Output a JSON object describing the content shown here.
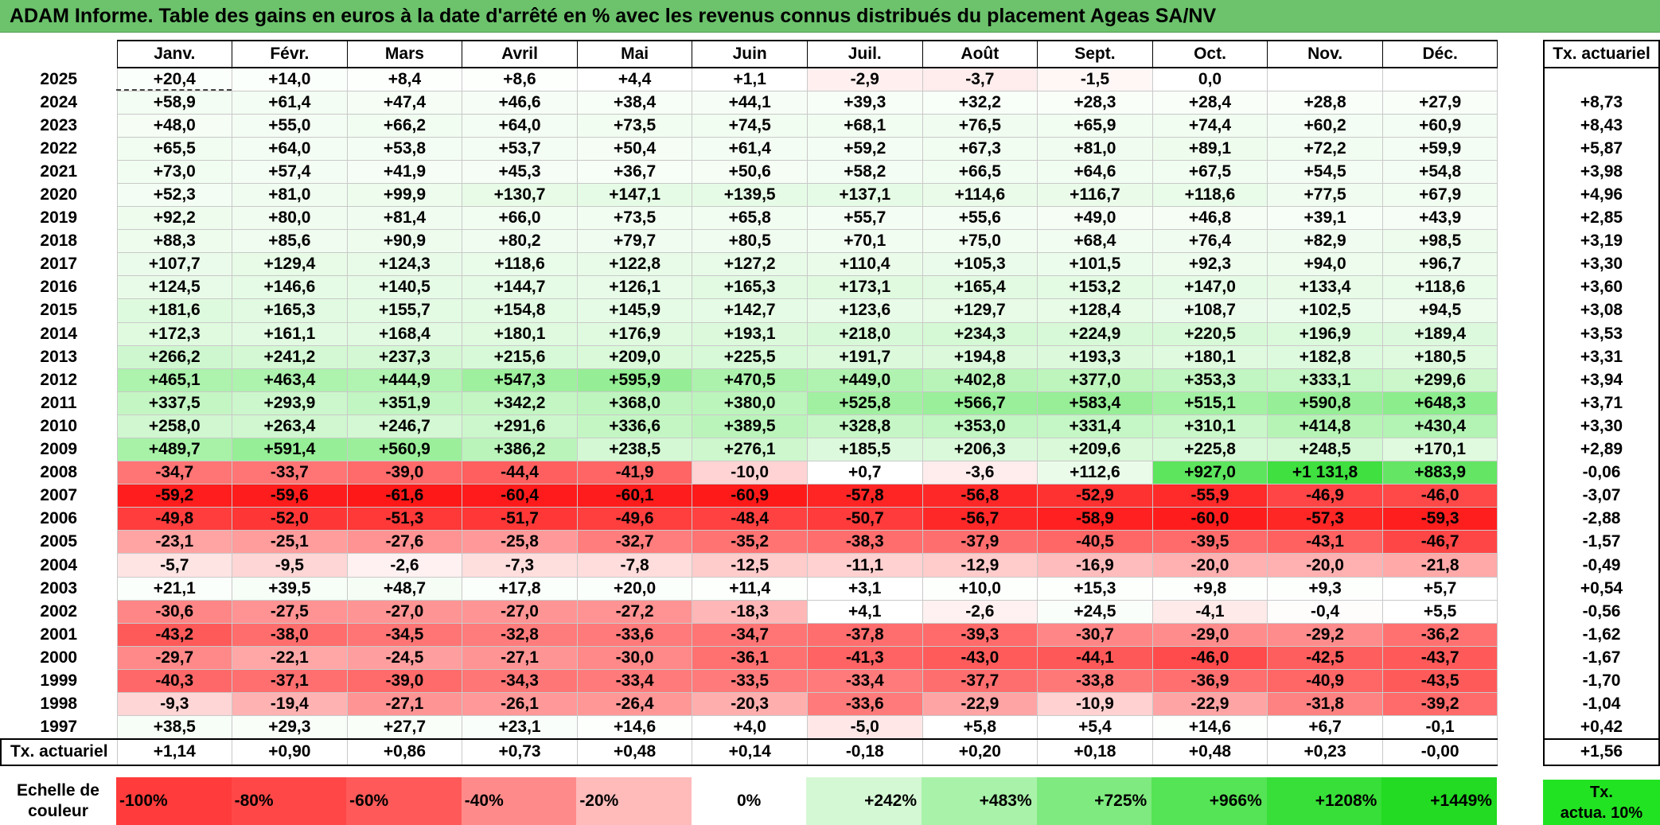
{
  "title": "ADAM Informe. Table des gains en euros à la date d'arrêté en % avec les revenus connus distribués du placement Ageas SA/NV",
  "months": [
    "Janv.",
    "Févr.",
    "Mars",
    "Avril",
    "Mai",
    "Juin",
    "Juil.",
    "Août",
    "Sept.",
    "Oct.",
    "Nov.",
    "Déc."
  ],
  "tx_header": "Tx. actuariel",
  "rows": [
    {
      "year": "2025",
      "values": [
        "+20,4",
        "+14,0",
        "+8,4",
        "+8,6",
        "+4,4",
        "+1,1",
        "-2,9",
        "-3,7",
        "-1,5",
        "0,0",
        "",
        ""
      ],
      "colors": [
        "#fbfffb",
        "#fbfffb",
        "#fdfffd",
        "#fdfffd",
        "#fefffe",
        "#fefffe",
        "#ffefef",
        "#ffecec",
        "#fff6f6",
        "#ffffff",
        "#ffffff",
        "#ffffff"
      ],
      "tx": ""
    },
    {
      "year": "2024",
      "values": [
        "+58,9",
        "+61,4",
        "+47,4",
        "+46,6",
        "+38,4",
        "+44,1",
        "+39,3",
        "+32,2",
        "+28,3",
        "+28,4",
        "+28,8",
        "+27,9"
      ],
      "colors": [
        "#f3fdf3",
        "#f3fdf3",
        "#f5fdf5",
        "#f6fdf6",
        "#f7fef7",
        "#f6fdf6",
        "#f7fef7",
        "#f8fef8",
        "#f9fef9",
        "#f9fef9",
        "#f9fef9",
        "#f9fef9"
      ],
      "tx": "+8,73"
    },
    {
      "year": "2023",
      "values": [
        "+48,0",
        "+55,0",
        "+66,2",
        "+64,0",
        "+73,5",
        "+74,5",
        "+68,1",
        "+76,5",
        "+65,9",
        "+74,4",
        "+60,2",
        "+60,9"
      ],
      "colors": [
        "#f5fdf5",
        "#f4fdf4",
        "#f2fdf2",
        "#f3fdf3",
        "#f1fdf1",
        "#f1fdf1",
        "#f2fdf2",
        "#f1fcf1",
        "#f2fdf2",
        "#f1fdf1",
        "#f3fdf3",
        "#f3fdf3"
      ],
      "tx": "+8,43"
    },
    {
      "year": "2022",
      "values": [
        "+65,5",
        "+64,0",
        "+53,8",
        "+53,7",
        "+50,4",
        "+61,4",
        "+59,2",
        "+67,3",
        "+81,0",
        "+89,1",
        "+72,2",
        "+59,9"
      ],
      "colors": [
        "#f2fdf2",
        "#f3fdf3",
        "#f4fdf4",
        "#f4fdf4",
        "#f5fdf5",
        "#f3fdf3",
        "#f3fdf3",
        "#f2fdf2",
        "#f0fcf0",
        "#eefcee",
        "#f1fdf1",
        "#f3fdf3"
      ],
      "tx": "+5,87"
    },
    {
      "year": "2021",
      "values": [
        "+73,0",
        "+57,4",
        "+41,9",
        "+45,3",
        "+36,7",
        "+50,6",
        "+58,2",
        "+66,5",
        "+64,6",
        "+67,5",
        "+54,5",
        "+54,8"
      ],
      "colors": [
        "#f1fdf1",
        "#f4fdf4",
        "#f6fdf6",
        "#f6fdf6",
        "#f7fef7",
        "#f5fdf5",
        "#f4fdf4",
        "#f2fdf2",
        "#f2fdf2",
        "#f2fdf2",
        "#f4fdf4",
        "#f4fdf4"
      ],
      "tx": "+3,98"
    },
    {
      "year": "2020",
      "values": [
        "+52,3",
        "+81,0",
        "+99,9",
        "+130,7",
        "+147,1",
        "+139,5",
        "+137,1",
        "+114,6",
        "+116,7",
        "+118,6",
        "+77,5",
        "+67,9"
      ],
      "colors": [
        "#f4fdf4",
        "#f0fcf0",
        "#edfcec",
        "#e7fbe7",
        "#e5fbe5",
        "#e6fbe6",
        "#e6fbe6",
        "#eafbea",
        "#eafbea",
        "#e9fbe9",
        "#f0fcf0",
        "#f2fdf2"
      ],
      "tx": "+4,96"
    },
    {
      "year": "2019",
      "values": [
        "+92,2",
        "+80,0",
        "+81,4",
        "+66,0",
        "+73,5",
        "+65,8",
        "+55,7",
        "+55,6",
        "+49,0",
        "+46,8",
        "+39,1",
        "+43,9"
      ],
      "colors": [
        "#eefcee",
        "#f0fcf0",
        "#f0fcf0",
        "#f2fdf2",
        "#f1fdf1",
        "#f2fdf2",
        "#f4fdf4",
        "#f4fdf4",
        "#f5fdf5",
        "#f5fdf5",
        "#f7fef7",
        "#f6fdf6"
      ],
      "tx": "+2,85"
    },
    {
      "year": "2018",
      "values": [
        "+88,3",
        "+85,6",
        "+90,9",
        "+80,2",
        "+79,7",
        "+80,5",
        "+70,1",
        "+75,0",
        "+68,4",
        "+76,4",
        "+82,9",
        "+98,5"
      ],
      "colors": [
        "#eefcee",
        "#effcef",
        "#eefcee",
        "#f0fcf0",
        "#f0fcf0",
        "#f0fcf0",
        "#f2fdf2",
        "#f1fdf1",
        "#f2fdf2",
        "#f1fcf1",
        "#effcef",
        "#edfcec"
      ],
      "tx": "+3,19"
    },
    {
      "year": "2017",
      "values": [
        "+107,7",
        "+129,4",
        "+124,3",
        "+118,6",
        "+122,8",
        "+127,2",
        "+110,4",
        "+105,3",
        "+101,5",
        "+92,3",
        "+94,0",
        "+96,7"
      ],
      "colors": [
        "#ebfbeb",
        "#e7fbe7",
        "#e8fbe8",
        "#e9fbe9",
        "#e8fbe8",
        "#e8fbe8",
        "#ebfbea",
        "#ebfbeb",
        "#ecfcec",
        "#eefcee",
        "#edfced",
        "#edfcec"
      ],
      "tx": "+3,30"
    },
    {
      "year": "2016",
      "values": [
        "+124,5",
        "+146,6",
        "+140,5",
        "+144,7",
        "+126,1",
        "+165,3",
        "+173,1",
        "+165,4",
        "+153,2",
        "+147,0",
        "+133,4",
        "+118,6"
      ],
      "colors": [
        "#e8fbe8",
        "#e5fbe5",
        "#e6fbe6",
        "#e5fbe5",
        "#e8fbe8",
        "#e1fae1",
        "#e0fae0",
        "#e1fae1",
        "#e3fae3",
        "#e5fbe5",
        "#e7fbe7",
        "#e9fbe9"
      ],
      "tx": "+3,60"
    },
    {
      "year": "2015",
      "values": [
        "+181,6",
        "+165,3",
        "+155,7",
        "+154,8",
        "+145,9",
        "+142,7",
        "+123,6",
        "+129,7",
        "+128,4",
        "+108,7",
        "+102,5",
        "+94,5"
      ],
      "colors": [
        "#defade",
        "#e1fae1",
        "#e3fae3",
        "#e3fae3",
        "#e5fbe5",
        "#e5fbe5",
        "#e8fbe8",
        "#e7fbe7",
        "#e7fbe7",
        "#ebfbeb",
        "#ecfcec",
        "#edfced"
      ],
      "tx": "+3,08"
    },
    {
      "year": "2014",
      "values": [
        "+172,3",
        "+161,1",
        "+168,4",
        "+180,1",
        "+176,9",
        "+193,1",
        "+218,0",
        "+234,3",
        "+224,9",
        "+220,5",
        "+196,9",
        "+189,4"
      ],
      "colors": [
        "#e0fae0",
        "#e2fae2",
        "#e1fae1",
        "#dffadf",
        "#dffadf",
        "#dcf9dc",
        "#d8f9d8",
        "#d5f8d5",
        "#d7f9d7",
        "#d7f9d7",
        "#dbf9db",
        "#ddf9dd"
      ],
      "tx": "+3,53"
    },
    {
      "year": "2013",
      "values": [
        "+266,2",
        "+241,2",
        "+237,3",
        "+215,6",
        "+209,0",
        "+225,5",
        "+191,7",
        "+194,8",
        "+193,3",
        "+180,1",
        "+182,8",
        "+180,5"
      ],
      "colors": [
        "#cff7cf",
        "#d4f8d4",
        "#d4f8d4",
        "#d8f9d8",
        "#d9f9d9",
        "#d7f9d7",
        "#dcf9dc",
        "#dcf9dc",
        "#dcf9dc",
        "#dffadf",
        "#defade",
        "#dffadf"
      ],
      "tx": "+3,31"
    },
    {
      "year": "2012",
      "values": [
        "+465,1",
        "+463,4",
        "+444,9",
        "+547,3",
        "+595,9",
        "+470,5",
        "+449,0",
        "+402,8",
        "+377,0",
        "+353,3",
        "+333,1",
        "+299,6"
      ],
      "colors": [
        "#adf2ad",
        "#adf2ad",
        "#b1f3b1",
        "#9ef09e",
        "#95ee95",
        "#acf2ac",
        "#b0f3b0",
        "#b8f4b8",
        "#bdf5bd",
        "#c1f5c1",
        "#c5f6c5",
        "#cbf7cb"
      ],
      "tx": "+3,94"
    },
    {
      "year": "2011",
      "values": [
        "+337,5",
        "+293,9",
        "+351,9",
        "+342,2",
        "+368,0",
        "+380,0",
        "+525,8",
        "+566,7",
        "+583,4",
        "+515,1",
        "+590,8",
        "+648,3"
      ],
      "colors": [
        "#c4f6c4",
        "#ccf7cc",
        "#c1f5c1",
        "#c3f6c3",
        "#bef5be",
        "#bcf5bc",
        "#a1f0a1",
        "#9aef9a",
        "#97ee97",
        "#a3f1a3",
        "#96ee96",
        "#8ced8c"
      ],
      "tx": "+3,71"
    },
    {
      "year": "2010",
      "values": [
        "+258,0",
        "+263,4",
        "+246,7",
        "+291,6",
        "+336,6",
        "+389,5",
        "+328,8",
        "+353,0",
        "+331,4",
        "+310,1",
        "+414,8",
        "+430,4"
      ],
      "colors": [
        "#d1f7d1",
        "#d0f7d0",
        "#d3f8d3",
        "#ccf7cc",
        "#c4f6c4",
        "#bbf4bb",
        "#c6f6c6",
        "#c1f5c1",
        "#c5f6c5",
        "#c9f7c9",
        "#b6f4b6",
        "#b3f3b3"
      ],
      "tx": "+3,30"
    },
    {
      "year": "2009",
      "values": [
        "+489,7",
        "+591,4",
        "+560,9",
        "+386,2",
        "+238,5",
        "+276,1",
        "+185,5",
        "+206,3",
        "+209,6",
        "+225,8",
        "+248,5",
        "+170,1"
      ],
      "colors": [
        "#a8f2a8",
        "#96ee96",
        "#9bef9b",
        "#bbf4bb",
        "#d4f8d4",
        "#cef7ce",
        "#ddf9dd",
        "#daf9da",
        "#d9f9d9",
        "#d7f9d7",
        "#d3f8d3",
        "#e0fae0"
      ],
      "tx": "+2,89"
    },
    {
      "year": "2008",
      "values": [
        "-34,7",
        "-33,7",
        "-39,0",
        "-44,4",
        "-41,9",
        "-10,0",
        "+0,7",
        "-3,6",
        "+112,6",
        "+927,0",
        "+1 131,8",
        "+883,9"
      ],
      "colors": [
        "#ff7474",
        "#ff7575",
        "#ff6b6b",
        "#ff5f5f",
        "#ff6565",
        "#ffd3d3",
        "#ffffff",
        "#ffeded",
        "#eafbea",
        "#5ee55e",
        "#3fe03f",
        "#64e664"
      ],
      "tx": "-0,06"
    },
    {
      "year": "2007",
      "values": [
        "-59,2",
        "-59,6",
        "-61,6",
        "-60,4",
        "-60,1",
        "-60,9",
        "-57,8",
        "-56,8",
        "-52,9",
        "-55,9",
        "-46,9",
        "-46,0"
      ],
      "colors": [
        "#ff1d1d",
        "#ff1c1c",
        "#ff1818",
        "#ff1b1b",
        "#ff1c1c",
        "#ff1a1a",
        "#ff2525",
        "#ff2828",
        "#ff3232",
        "#ff2a2a",
        "#ff4545",
        "#ff4848"
      ],
      "tx": "-3,07"
    },
    {
      "year": "2006",
      "values": [
        "-49,8",
        "-52,0",
        "-51,3",
        "-51,7",
        "-49,6",
        "-48,4",
        "-50,7",
        "-56,7",
        "-58,9",
        "-60,0",
        "-57,3",
        "-59,3"
      ],
      "colors": [
        "#ff3d3d",
        "#ff3636",
        "#ff3838",
        "#ff3737",
        "#ff3e3e",
        "#ff4141",
        "#ff3b3b",
        "#ff2828",
        "#ff2121",
        "#ff1c1c",
        "#ff2626",
        "#ff1e1e"
      ],
      "tx": "-2,88"
    },
    {
      "year": "2005",
      "values": [
        "-23,1",
        "-25,1",
        "-27,6",
        "-25,8",
        "-32,7",
        "-35,2",
        "-38,3",
        "-37,9",
        "-40,5",
        "-39,5",
        "-43,1",
        "-46,7"
      ],
      "colors": [
        "#ffa3a3",
        "#ff9c9c",
        "#ff9393",
        "#ff9999",
        "#ff7d7d",
        "#ff7373",
        "#ff6d6d",
        "#ff6e6e",
        "#ff6767",
        "#ff6a6a",
        "#ff6161",
        "#ff4646"
      ],
      "tx": "-1,57"
    },
    {
      "year": "2004",
      "values": [
        "-5,7",
        "-9,5",
        "-2,6",
        "-7,3",
        "-7,8",
        "-12,5",
        "-11,1",
        "-12,9",
        "-16,9",
        "-20,0",
        "-20,0",
        "-21,8"
      ],
      "colors": [
        "#ffe4e4",
        "#ffd6d6",
        "#fff1f1",
        "#ffdede",
        "#ffdddd",
        "#ffcccc",
        "#ffd1d1",
        "#ffcbcb",
        "#ffbcbc",
        "#ffb0b0",
        "#ffb0b0",
        "#ffa9a9"
      ],
      "tx": "-0,49"
    },
    {
      "year": "2003",
      "values": [
        "+21,1",
        "+39,5",
        "+48,7",
        "+17,8",
        "+20,0",
        "+11,4",
        "+3,1",
        "+10,0",
        "+15,3",
        "+9,8",
        "+9,3",
        "+5,7"
      ],
      "colors": [
        "#fbfffb",
        "#f7fef7",
        "#f5fdf5",
        "#fbfffb",
        "#fbfffb",
        "#fcfffc",
        "#fefffe",
        "#fdfffd",
        "#fcfffc",
        "#fdfffd",
        "#fdfffd",
        "#fefffe"
      ],
      "tx": "+0,54"
    },
    {
      "year": "2002",
      "values": [
        "-30,6",
        "-27,5",
        "-27,0",
        "-27,0",
        "-27,2",
        "-18,3",
        "+4,1",
        "-2,6",
        "+24,5",
        "-4,1",
        "-0,4",
        "+5,5"
      ],
      "colors": [
        "#ff8686",
        "#ff9393",
        "#ff9494",
        "#ff9494",
        "#ff9393",
        "#ffb6b6",
        "#ffffff",
        "#fff1f1",
        "#fafefa",
        "#ffeaea",
        "#fffcfc",
        "#fefffe"
      ],
      "tx": "-0,56"
    },
    {
      "year": "2001",
      "values": [
        "-43,2",
        "-38,0",
        "-34,5",
        "-32,8",
        "-33,6",
        "-34,7",
        "-37,8",
        "-39,3",
        "-30,7",
        "-29,0",
        "-29,2",
        "-36,2"
      ],
      "colors": [
        "#ff5a5a",
        "#ff6d6d",
        "#ff7575",
        "#ff7c7c",
        "#ff7a7a",
        "#ff7474",
        "#ff6e6e",
        "#ff6a6a",
        "#ff8686",
        "#ff8c8c",
        "#ff8c8c",
        "#ff7171"
      ],
      "tx": "-1,62"
    },
    {
      "year": "2000",
      "values": [
        "-29,7",
        "-22,1",
        "-24,5",
        "-27,1",
        "-30,0",
        "-36,1",
        "-41,3",
        "-43,0",
        "-44,1",
        "-46,0",
        "-42,5",
        "-43,7"
      ],
      "colors": [
        "#ff8989",
        "#ffa7a7",
        "#ff9e9e",
        "#ff9494",
        "#ff8888",
        "#ff7171",
        "#ff6363",
        "#ff5b5b",
        "#ff5858",
        "#ff4b4b",
        "#ff5e5e",
        "#ff5959"
      ],
      "tx": "-1,67"
    },
    {
      "year": "1999",
      "values": [
        "-40,3",
        "-37,1",
        "-39,0",
        "-34,3",
        "-33,4",
        "-33,5",
        "-33,4",
        "-37,7",
        "-33,8",
        "-36,9",
        "-40,9",
        "-43,5"
      ],
      "colors": [
        "#ff6868",
        "#ff6f6f",
        "#ff6b6b",
        "#ff7676",
        "#ff7a7a",
        "#ff7a7a",
        "#ff7a7a",
        "#ff6e6e",
        "#ff7878",
        "#ff6f6f",
        "#ff6666",
        "#ff5a5a"
      ],
      "tx": "-1,70"
    },
    {
      "year": "1998",
      "values": [
        "-9,3",
        "-19,4",
        "-27,1",
        "-26,1",
        "-26,4",
        "-20,3",
        "-33,6",
        "-22,9",
        "-10,9",
        "-22,9",
        "-31,8",
        "-39,2"
      ],
      "colors": [
        "#ffd6d6",
        "#ffb2b2",
        "#ff9494",
        "#ff9898",
        "#ff9797",
        "#ffaeae",
        "#ff7a7a",
        "#ffa4a4",
        "#ffd1d1",
        "#ffa4a4",
        "#ff8282",
        "#ff6a6a"
      ],
      "tx": "-1,04"
    },
    {
      "year": "1997",
      "values": [
        "+38,5",
        "+29,3",
        "+27,7",
        "+23,1",
        "+14,6",
        "+4,0",
        "-5,0",
        "+5,8",
        "+5,4",
        "+14,6",
        "+6,7",
        "-0,1"
      ],
      "colors": [
        "#f7fef7",
        "#f9fef9",
        "#f9fef9",
        "#fafefa",
        "#fcfffc",
        "#ffffff",
        "#ffe7e7",
        "#fefffe",
        "#fefffe",
        "#fcfffc",
        "#fefffe",
        "#ffffff"
      ],
      "tx": "+0,42"
    }
  ],
  "avg_row": {
    "label": "Tx. actuariel",
    "values": [
      "+1,14",
      "+0,90",
      "+0,86",
      "+0,73",
      "+0,48",
      "+0,14",
      "-0,18",
      "+0,20",
      "+0,18",
      "+0,48",
      "+0,23",
      "-0,00"
    ],
    "tx": "+1,56"
  },
  "scale": {
    "label_line1": "Echelle de",
    "label_line2": "couleur",
    "items": [
      {
        "label": "-100%",
        "color": "#ff3b3b",
        "kind": "neg"
      },
      {
        "label": "-80%",
        "color": "#ff4747",
        "kind": "neg"
      },
      {
        "label": "-60%",
        "color": "#ff5959",
        "kind": "neg"
      },
      {
        "label": "-40%",
        "color": "#ff8a8a",
        "kind": "neg"
      },
      {
        "label": "-20%",
        "color": "#ffbaba",
        "kind": "neg"
      },
      {
        "label": "0%",
        "color": "#ffffff",
        "kind": "zero"
      },
      {
        "label": "+242%",
        "color": "#d4f8d4",
        "kind": "pos"
      },
      {
        "label": "+483%",
        "color": "#a9f2a9",
        "kind": "pos"
      },
      {
        "label": "+725%",
        "color": "#7fea7f",
        "kind": "pos"
      },
      {
        "label": "+966%",
        "color": "#55e455",
        "kind": "pos"
      },
      {
        "label": "+1208%",
        "color": "#38df38",
        "kind": "pos"
      },
      {
        "label": "+1449%",
        "color": "#22db22",
        "kind": "pos"
      }
    ],
    "tx_line1": "Tx.",
    "tx_line2": "actua. 10%"
  }
}
